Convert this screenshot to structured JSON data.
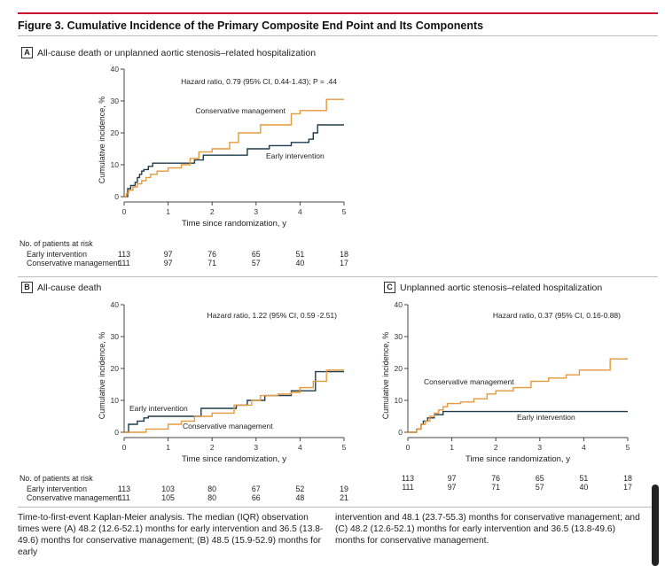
{
  "figure": {
    "title": "Figure 3. Cumulative Incidence of the Primary Composite End Point and Its Components"
  },
  "colors": {
    "early": "#1f3b4d",
    "conservative": "#e59a3c",
    "accent": "#c8102e"
  },
  "chart_data": [
    {
      "type": "line",
      "panel": "A",
      "title": "All-cause death or unplanned aortic stenosis–related hospitalization",
      "annotation": "Hazard ratio, 0.79 (95% CI, 0.44-1.43); P = .44",
      "xlabel": "Time since randomization, y",
      "ylabel": "Cumulative incidence, %",
      "xlim": [
        0,
        5
      ],
      "ylim": [
        0,
        40
      ],
      "xticks": [
        "0",
        "1",
        "2",
        "3",
        "4",
        "5"
      ],
      "yticks": [
        "0",
        "10",
        "20",
        "30",
        "40"
      ],
      "series": [
        {
          "name": "Early intervention",
          "color": "#1f3b4d",
          "x": [
            0,
            0.08,
            0.15,
            0.25,
            0.3,
            0.35,
            0.4,
            0.45,
            0.55,
            0.65,
            0.8,
            1.0,
            1.3,
            1.6,
            1.8,
            2.1,
            2.5,
            2.8,
            3.3,
            3.8,
            4.2,
            4.3,
            4.4,
            5.0
          ],
          "y": [
            0,
            2.5,
            3.5,
            4.5,
            6,
            7,
            8,
            8.5,
            9.5,
            10.5,
            10.5,
            10.5,
            10.5,
            11.5,
            13,
            13,
            13,
            15,
            16,
            17,
            18,
            20,
            22.5,
            22.5
          ]
        },
        {
          "name": "Conservative management",
          "color": "#e59a3c",
          "x": [
            0,
            0.05,
            0.1,
            0.2,
            0.3,
            0.4,
            0.5,
            0.6,
            0.75,
            1.0,
            1.3,
            1.5,
            1.7,
            2.0,
            2.4,
            2.6,
            2.9,
            3.1,
            3.4,
            3.7,
            3.8,
            4.0,
            4.2,
            4.4,
            4.6,
            5.0
          ],
          "y": [
            0,
            1,
            2,
            3,
            4,
            5,
            6,
            7,
            8,
            9,
            10,
            12,
            14,
            15,
            17,
            20,
            20,
            22.5,
            22.5,
            22.5,
            26,
            27,
            27,
            27,
            30.5,
            30.5
          ]
        }
      ],
      "series_labels": [
        "Conservative management",
        "Early intervention"
      ],
      "risk": {
        "title": "No. of patients at risk",
        "rows": [
          {
            "label": "Early intervention",
            "values": [
              "113",
              "97",
              "76",
              "65",
              "51",
              "18"
            ]
          },
          {
            "label": "Conservative management",
            "values": [
              "111",
              "97",
              "71",
              "57",
              "40",
              "17"
            ]
          }
        ]
      }
    },
    {
      "type": "line",
      "panel": "B",
      "title": "All-cause death",
      "annotation": "Hazard ratio, 1.22 (95% CI, 0.59 -2.51)",
      "xlabel": "Time since randomization, y",
      "ylabel": "Cumulative incidence, %",
      "xlim": [
        0,
        5
      ],
      "ylim": [
        0,
        40
      ],
      "xticks": [
        "0",
        "1",
        "2",
        "3",
        "4",
        "5"
      ],
      "yticks": [
        "0",
        "10",
        "20",
        "30",
        "40"
      ],
      "series": [
        {
          "name": "Early intervention",
          "color": "#1f3b4d",
          "x": [
            0,
            0.1,
            0.3,
            0.45,
            0.55,
            0.7,
            1.0,
            1.4,
            1.75,
            2.2,
            2.55,
            2.8,
            3.2,
            3.5,
            3.8,
            4.15,
            4.35,
            5.0
          ],
          "y": [
            0,
            2.5,
            3.5,
            4.5,
            5,
            5,
            5,
            5,
            7.5,
            7.5,
            8.5,
            10,
            11.5,
            11.5,
            13,
            13,
            19,
            19
          ]
        },
        {
          "name": "Conservative management",
          "color": "#e59a3c",
          "x": [
            0,
            0.5,
            1.0,
            1.3,
            1.6,
            2.0,
            2.5,
            2.9,
            3.1,
            3.5,
            3.8,
            4.0,
            4.3,
            4.6,
            5.0
          ],
          "y": [
            0,
            1,
            2.5,
            3.5,
            5,
            6,
            8.5,
            10,
            11.5,
            12,
            12.5,
            14,
            16,
            19.5,
            19.5
          ]
        }
      ],
      "series_labels": [
        "Early intervention",
        "Conservative management"
      ],
      "risk": {
        "title": "No. of patients at risk",
        "rows": [
          {
            "label": "Early intervention",
            "values": [
              "113",
              "103",
              "80",
              "67",
              "52",
              "19"
            ]
          },
          {
            "label": "Conservative management",
            "values": [
              "111",
              "105",
              "80",
              "66",
              "48",
              "21"
            ]
          }
        ]
      }
    },
    {
      "type": "line",
      "panel": "C",
      "title": "Unplanned aortic stenosis–related hospitalization",
      "annotation": "Hazard ratio, 0.37 (95% CI, 0.16-0.88)",
      "xlabel": "Time since randomization, y",
      "ylabel": "Cumulative incidence, %",
      "xlim": [
        0,
        5
      ],
      "ylim": [
        0,
        40
      ],
      "xticks": [
        "0",
        "1",
        "2",
        "3",
        "4",
        "5"
      ],
      "yticks": [
        "0",
        "10",
        "20",
        "30",
        "40"
      ],
      "series": [
        {
          "name": "Early intervention",
          "color": "#1f3b4d",
          "x": [
            0,
            0.2,
            0.3,
            0.35,
            0.45,
            0.6,
            0.8,
            5.0
          ],
          "y": [
            0,
            1,
            2.5,
            3.5,
            4.5,
            5.5,
            6.5,
            6.5
          ]
        },
        {
          "name": "Conservative management",
          "color": "#e59a3c",
          "x": [
            0,
            0.2,
            0.3,
            0.4,
            0.5,
            0.6,
            0.7,
            0.8,
            0.9,
            1.2,
            1.5,
            1.8,
            2.0,
            2.4,
            2.8,
            3.2,
            3.6,
            3.9,
            4.6,
            5.0
          ],
          "y": [
            0,
            1,
            2.5,
            3.5,
            5,
            6,
            7,
            8,
            9,
            9.5,
            10.5,
            12,
            13,
            14,
            16,
            17,
            18,
            19.5,
            23,
            23
          ]
        }
      ],
      "series_labels": [
        "Conservative management",
        "Early intervention"
      ],
      "risk": {
        "rows": [
          {
            "label": "",
            "values": [
              "113",
              "97",
              "76",
              "65",
              "51",
              "18"
            ]
          },
          {
            "label": "",
            "values": [
              "111",
              "97",
              "71",
              "57",
              "40",
              "17"
            ]
          }
        ]
      }
    }
  ],
  "caption": {
    "left": "Time-to-first-event Kaplan-Meier analysis. The median (IQR) observation times were (A) 48.2 (12.6-52.1) months for early intervention and 36.5 (13.8-49.6) months for conservative management; (B) 48.5 (15.9-52.9) months for early",
    "right": "intervention and 48.1 (23.7-55.3) months for conservative management; and (C) 48.2 (12.6-52.1) months for early intervention and 36.5 (13.8-49.6) months for conservative management."
  }
}
